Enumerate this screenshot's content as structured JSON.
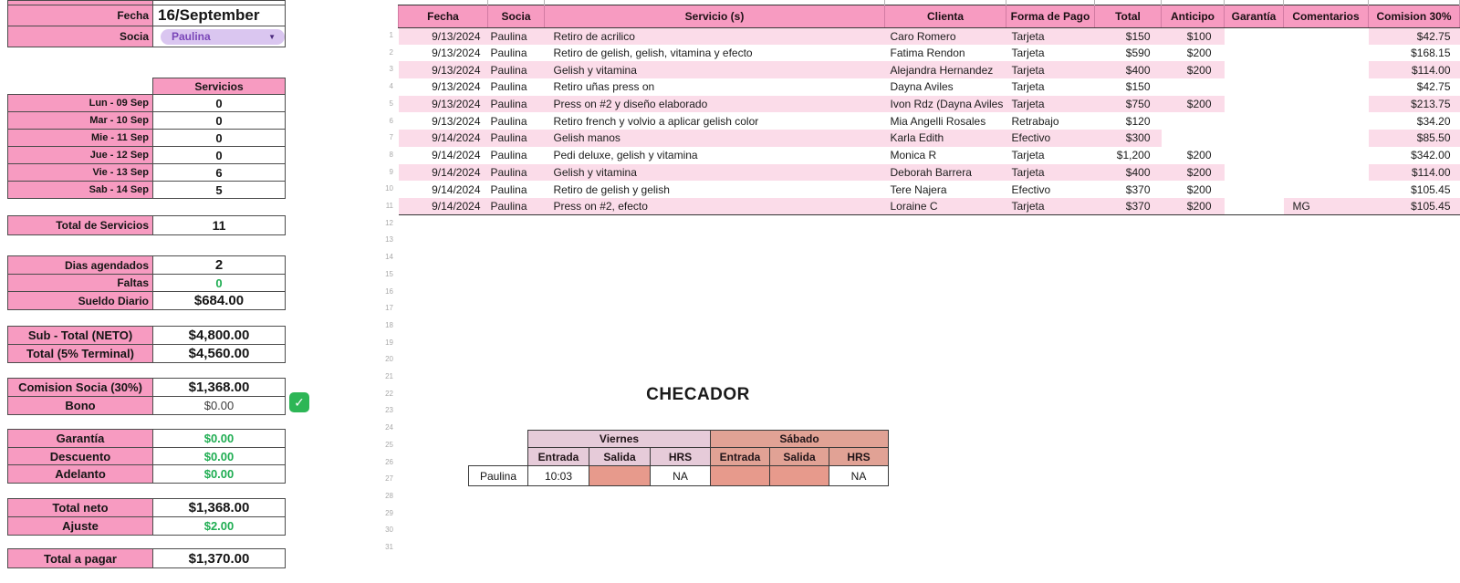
{
  "colors": {
    "pink_strong": "#F79BC1",
    "pink_light": "#FBDCE9",
    "green": "#1FAD52",
    "purple_text": "#7A46B8",
    "pill_bg": "#DAC6F0",
    "checkbox_green": "#2DB656",
    "checador_viernes": "#E6CBD9",
    "checador_sabado": "#E1A295",
    "checador_cell_fill": "#E79A8C"
  },
  "left_panel": {
    "fecha_label": "Fecha",
    "fecha_value": "16/September",
    "socia_label": "Socia",
    "socia_value": "Paulina",
    "servicios_header": "Servicios",
    "days": [
      {
        "label": "Lun - 09 Sep",
        "value": "0"
      },
      {
        "label": "Mar - 10 Sep",
        "value": "0"
      },
      {
        "label": "Mie - 11 Sep",
        "value": "0"
      },
      {
        "label": "Jue - 12 Sep",
        "value": "0"
      },
      {
        "label": "Vie - 13 Sep",
        "value": "6"
      },
      {
        "label": "Sab - 14 Sep",
        "value": "5"
      }
    ],
    "total_servicios": {
      "label": "Total de Servicios",
      "value": "11"
    },
    "attendance": [
      {
        "label": "Dias agendados",
        "value": "2"
      },
      {
        "label": "Faltas",
        "value": "0",
        "green": true
      },
      {
        "label": "Sueldo Diario",
        "value": "$684.00"
      }
    ],
    "subtotal": [
      {
        "label": "Sub - Total (NETO)",
        "value": "$4,800.00"
      },
      {
        "label": "Total (5% Terminal)",
        "value": "$4,560.00"
      }
    ],
    "comision": [
      {
        "label": "Comision Socia (30%)",
        "value": "$1,368.00"
      },
      {
        "label": "Bono",
        "value": "$0.00",
        "muted": true
      }
    ],
    "deductions": [
      {
        "label": "Garantía",
        "value": "$0.00",
        "green": true
      },
      {
        "label": "Descuento",
        "value": "$0.00",
        "green": true
      },
      {
        "label": "Adelanto",
        "value": "$0.00",
        "green": true
      }
    ],
    "totals": [
      {
        "label": "Total neto",
        "value": "$1,368.00"
      },
      {
        "label": "Ajuste",
        "value": "$2.00",
        "green": true
      }
    ],
    "final": [
      {
        "label": "Total a pagar",
        "value": "$1,370.00"
      }
    ]
  },
  "table": {
    "headers": [
      "Fecha",
      "Socia",
      "Servicio (s)",
      "Clienta",
      "Forma de Pago",
      "Total",
      "Anticipo",
      "Garantía",
      "Comentarios",
      "Comision 30%"
    ],
    "rows": [
      {
        "fecha": "9/13/2024",
        "socia": "Paulina",
        "servicio": "Retiro de acrilico",
        "clienta": "Caro Romero",
        "forma": "Tarjeta",
        "total": "$150",
        "anticipo": "$100",
        "garantia": "",
        "comentarios": "",
        "comision": "$42.75"
      },
      {
        "fecha": "9/13/2024",
        "socia": "Paulina",
        "servicio": "Retiro de gelish, gelish, vitamina y efecto",
        "clienta": "Fatima Rendon",
        "forma": "Tarjeta",
        "total": "$590",
        "anticipo": "$200",
        "garantia": "",
        "comentarios": "",
        "comision": "$168.15"
      },
      {
        "fecha": "9/13/2024",
        "socia": "Paulina",
        "servicio": "Gelish y vitamina",
        "clienta": "Alejandra Hernandez",
        "forma": "Tarjeta",
        "total": "$400",
        "anticipo": "$200",
        "garantia": "",
        "comentarios": "",
        "comision": "$114.00"
      },
      {
        "fecha": "9/13/2024",
        "socia": "Paulina",
        "servicio": "Retiro uñas press on",
        "clienta": "Dayna Aviles",
        "forma": "Tarjeta",
        "total": "$150",
        "anticipo": "",
        "garantia": "",
        "comentarios": "",
        "comision": "$42.75"
      },
      {
        "fecha": "9/13/2024",
        "socia": "Paulina",
        "servicio": "Press on #2 y diseño elaborado",
        "clienta": "Ivon Rdz (Dayna Aviles",
        "forma": "Tarjeta",
        "total": "$750",
        "anticipo": "$200",
        "garantia": "",
        "comentarios": "",
        "comision": "$213.75"
      },
      {
        "fecha": "9/13/2024",
        "socia": "Paulina",
        "servicio": "Retiro french y volvio a aplicar gelish color",
        "clienta": "Mia Angelli Rosales",
        "forma": "Retrabajo",
        "total": "$120",
        "anticipo": "",
        "garantia": "",
        "comentarios": "",
        "comision": "$34.20"
      },
      {
        "fecha": "9/14/2024",
        "socia": "Paulina",
        "servicio": "Gelish manos",
        "clienta": "Karla Edith",
        "forma": "Efectivo",
        "total": "$300",
        "anticipo": "",
        "garantia": "",
        "comentarios": "",
        "comision": "$85.50"
      },
      {
        "fecha": "9/14/2024",
        "socia": "Paulina",
        "servicio": "Pedi deluxe, gelish y vitamina",
        "clienta": "Monica R",
        "forma": "Tarjeta",
        "total": "$1,200",
        "anticipo": "$200",
        "garantia": "",
        "comentarios": "",
        "comision": "$342.00"
      },
      {
        "fecha": "9/14/2024",
        "socia": "Paulina",
        "servicio": "Gelish y vitamina",
        "clienta": "Deborah Barrera",
        "forma": "Tarjeta",
        "total": "$400",
        "anticipo": "$200",
        "garantia": "",
        "comentarios": "",
        "comision": "$114.00"
      },
      {
        "fecha": "9/14/2024",
        "socia": "Paulina",
        "servicio": "Retiro de gelish y gelish",
        "clienta": "Tere Najera",
        "forma": "Efectivo",
        "total": "$370",
        "anticipo": "$200",
        "garantia": "",
        "comentarios": "",
        "comision": "$105.45"
      },
      {
        "fecha": "9/14/2024",
        "socia": "Paulina",
        "servicio": "Press on #2, efecto",
        "clienta": "Loraine C",
        "forma": "Tarjeta",
        "total": "$370",
        "anticipo": "$200",
        "garantia": "",
        "comentarios": "MG",
        "comision": "$105.45"
      }
    ],
    "row_numbers": [
      1,
      2,
      3,
      4,
      5,
      6,
      7,
      8,
      9,
      10,
      11,
      12,
      13,
      14,
      15,
      16,
      17,
      18,
      19,
      20,
      21,
      22,
      23,
      24,
      25,
      26,
      27,
      28,
      29,
      30,
      31
    ]
  },
  "checador": {
    "title": "CHECADOR",
    "viernes_label": "Viernes",
    "sabado_label": "Sábado",
    "sub_headers": [
      "Entrada",
      "Salida",
      "HRS"
    ],
    "row": {
      "name": "Paulina",
      "viernes": {
        "entrada": "10:03",
        "salida": "",
        "hrs": "NA"
      },
      "sabado": {
        "entrada": "",
        "salida": "",
        "hrs": "NA"
      }
    }
  }
}
